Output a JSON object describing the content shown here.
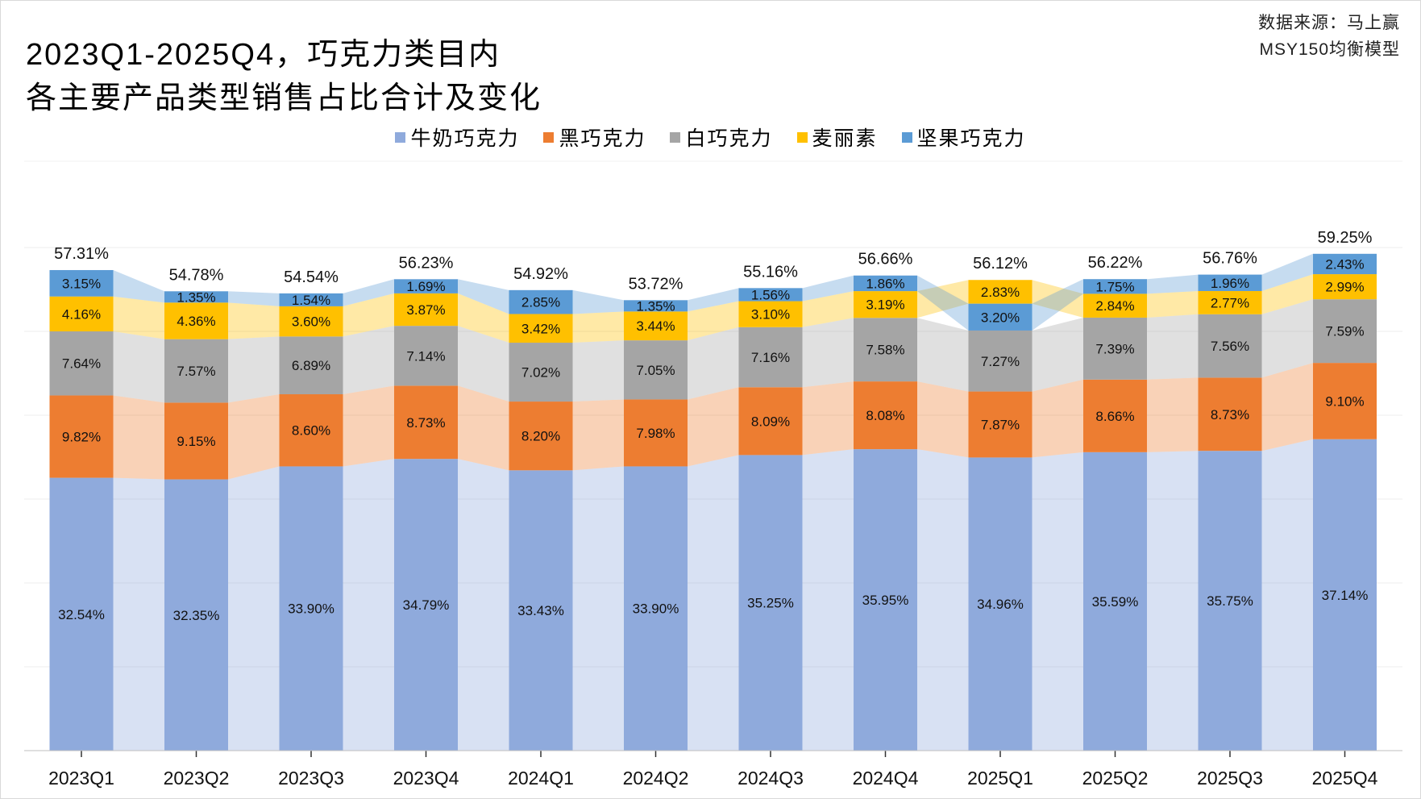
{
  "title_lines": [
    "2023Q1-2025Q4，巧克力类目内",
    "各主要产品类型销售占比合计及变化"
  ],
  "source_lines": [
    "数据来源：马上赢",
    "MSY150均衡模型"
  ],
  "chart_data": {
    "type": "bar",
    "stacked": true,
    "stack_order": "descending by value from bottom",
    "categories": [
      "2023Q1",
      "2023Q2",
      "2023Q3",
      "2023Q4",
      "2024Q1",
      "2024Q2",
      "2024Q3",
      "2024Q4",
      "2025Q1",
      "2025Q2",
      "2025Q3",
      "2025Q4"
    ],
    "series": [
      {
        "name": "牛奶巧克力",
        "color": "#8FAADC",
        "values": [
          32.54,
          32.35,
          33.9,
          34.79,
          33.43,
          33.9,
          35.25,
          35.95,
          34.96,
          35.59,
          35.75,
          37.14
        ]
      },
      {
        "name": "黑巧克力",
        "color": "#ED7D31",
        "values": [
          9.82,
          9.15,
          8.6,
          8.73,
          8.2,
          7.98,
          8.09,
          8.08,
          7.87,
          8.66,
          8.73,
          9.1
        ]
      },
      {
        "name": "白巧克力",
        "color": "#A5A5A5",
        "values": [
          7.64,
          7.57,
          6.89,
          7.14,
          7.02,
          7.05,
          7.16,
          7.58,
          7.27,
          7.39,
          7.56,
          7.59
        ]
      },
      {
        "name": "麦丽素",
        "color": "#FFC000",
        "values": [
          4.16,
          4.36,
          3.6,
          3.87,
          3.42,
          3.44,
          3.1,
          3.19,
          2.83,
          2.84,
          2.77,
          2.99
        ]
      },
      {
        "name": "坚果巧克力",
        "color": "#5B9BD5",
        "values": [
          3.15,
          1.35,
          1.54,
          1.69,
          2.85,
          1.35,
          1.56,
          1.86,
          3.2,
          1.75,
          1.96,
          2.43
        ]
      }
    ],
    "total_labels": [
      "57.31%",
      "54.78%",
      "54.54%",
      "56.23%",
      "54.92%",
      "53.72%",
      "55.16%",
      "56.66%",
      "56.12%",
      "56.22%",
      "56.76%",
      "59.25%"
    ],
    "ylim": [
      0,
      60
    ],
    "grid": true,
    "legend": "top-center",
    "xlabel": "",
    "ylabel": ""
  }
}
